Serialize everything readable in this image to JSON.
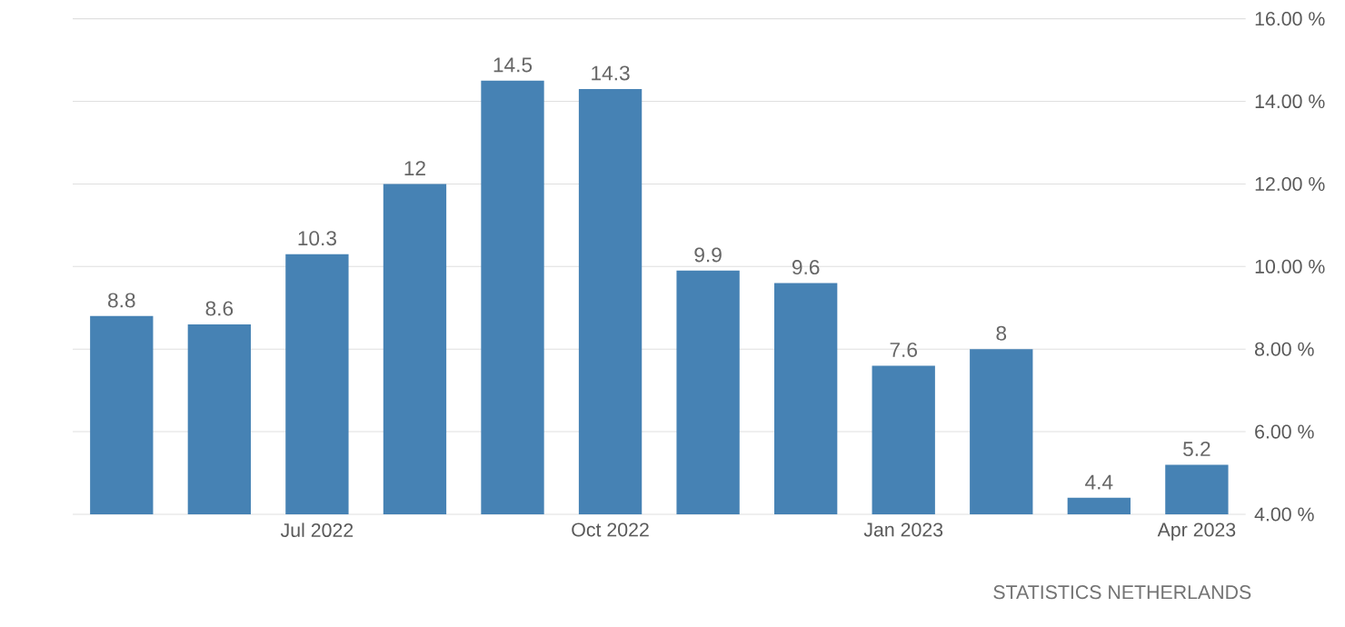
{
  "chart_data": {
    "type": "bar",
    "categories": [
      null,
      null,
      "Jul 2022",
      null,
      null,
      "Oct 2022",
      null,
      null,
      "Jan 2023",
      null,
      null,
      "Apr 2023"
    ],
    "values": [
      8.8,
      8.6,
      10.3,
      12,
      14.5,
      14.3,
      9.9,
      9.6,
      7.6,
      8,
      4.4,
      5.2
    ],
    "color": "#4682b4",
    "ylim": [
      4,
      16
    ],
    "yticks": [
      {
        "value": 4,
        "label": "4.00 %"
      },
      {
        "value": 6,
        "label": "6.00 %"
      },
      {
        "value": 8,
        "label": "8.00 %"
      },
      {
        "value": 10,
        "label": "10.00 %"
      },
      {
        "value": 12,
        "label": "12.00 %"
      },
      {
        "value": 14,
        "label": "14.00 %"
      },
      {
        "value": 16,
        "label": "16.00 %"
      }
    ],
    "grid": true,
    "data_labels": true,
    "annotations": [
      "STATISTICS NETHERLANDS"
    ]
  }
}
